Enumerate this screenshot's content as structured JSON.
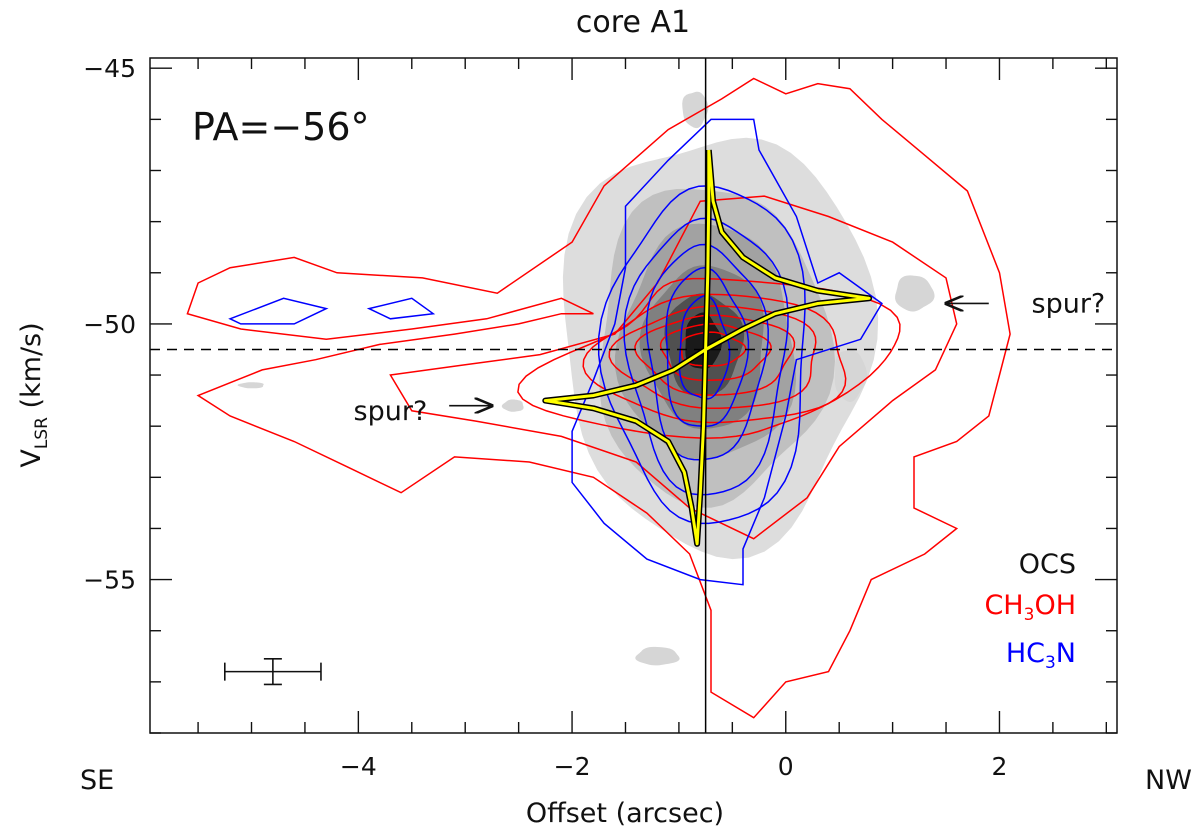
{
  "chart_data": {
    "type": "contour",
    "title": "core A1",
    "xlabel": "Offset (arcsec)",
    "ylabel": {
      "base": "V",
      "sub": "LSR",
      "unit": " (km/s)"
    },
    "xlim": [
      -5.95,
      3.1
    ],
    "ylim": [
      -58.0,
      -44.8
    ],
    "x_ticks": [
      -4,
      -2,
      0,
      2
    ],
    "x_tick_labels": [
      "−4",
      "−2",
      "0",
      "2"
    ],
    "y_ticks": [
      -55,
      -50,
      -45
    ],
    "y_tick_labels": [
      "−55",
      "−50",
      "−45"
    ],
    "direction_left": "SE",
    "direction_right": "NW",
    "pa_label": "PA=−56°",
    "center_offset": -0.75,
    "systemic_velocity": -50.5,
    "legend": {
      "position": "bottom-right",
      "items": [
        {
          "base": "OCS",
          "sub": "",
          "tail": "",
          "color": "#000000"
        },
        {
          "base": "CH",
          "sub": "3",
          "tail": "OH",
          "color": "#ff0000"
        },
        {
          "base": "HC",
          "sub": "3",
          "tail": "N",
          "color": "#0000ff"
        }
      ]
    },
    "annotations": [
      {
        "text": "spur?",
        "x": 2.3,
        "y": -49.6,
        "arrow_from": [
          1.9,
          -49.6
        ],
        "arrow_to": [
          1.5,
          -49.6
        ]
      },
      {
        "text": "spur?",
        "x": -3.7,
        "y": -51.7,
        "arrow_from": [
          -3.15,
          -51.6
        ],
        "arrow_to": [
          -2.75,
          -51.6
        ]
      }
    ],
    "error_bar": {
      "x": -4.8,
      "y": -56.8,
      "dx": 0.45,
      "dy": 0.25
    },
    "model_curve": {
      "color": "#ffff00",
      "points": [
        [
          -0.72,
          -46.6
        ],
        [
          -0.68,
          -47.6
        ],
        [
          -0.6,
          -48.2
        ],
        [
          -0.4,
          -48.7
        ],
        [
          -0.1,
          -49.1
        ],
        [
          0.3,
          -49.35
        ],
        [
          0.78,
          -49.5
        ],
        [
          0.3,
          -49.6
        ],
        [
          -0.1,
          -49.8
        ],
        [
          -0.4,
          -50.1
        ],
        [
          -0.75,
          -50.5
        ],
        [
          -1.05,
          -50.9
        ],
        [
          -1.4,
          -51.2
        ],
        [
          -1.8,
          -51.4
        ],
        [
          -2.25,
          -51.5
        ],
        [
          -1.8,
          -51.65
        ],
        [
          -1.4,
          -51.9
        ],
        [
          -1.1,
          -52.3
        ],
        [
          -0.95,
          -52.9
        ],
        [
          -0.88,
          -53.6
        ],
        [
          -0.83,
          -54.3
        ],
        [
          -0.8,
          -53.3
        ],
        [
          -0.77,
          -52.0
        ],
        [
          -0.75,
          -50.5
        ],
        [
          -0.73,
          -49.0
        ],
        [
          -0.72,
          -47.6
        ],
        [
          -0.72,
          -46.6
        ]
      ]
    },
    "ocs_contours": [
      {
        "level": 1,
        "color": "#dddddd",
        "center": [
          -0.65,
          -50.3
        ],
        "rx": 1.45,
        "ry": 4.05,
        "rot": 0
      },
      {
        "level": 2,
        "color": "#c0c0c0",
        "center": [
          -0.7,
          -50.4
        ],
        "rx": 1.08,
        "ry": 3.1,
        "rot": 0
      },
      {
        "level": 3,
        "color": "#a2a2a2",
        "center": [
          -0.73,
          -50.4
        ],
        "rx": 0.82,
        "ry": 2.3,
        "rot": 0
      },
      {
        "level": 4,
        "color": "#808080",
        "center": [
          -0.75,
          -50.45
        ],
        "rx": 0.57,
        "ry": 1.6,
        "rot": 0
      },
      {
        "level": 5,
        "color": "#505050",
        "center": [
          -0.77,
          -50.4
        ],
        "rx": 0.36,
        "ry": 1.0,
        "rot": 0
      },
      {
        "level": 6,
        "color": "#1a1a1a",
        "center": [
          -0.78,
          -50.35
        ],
        "rx": 0.17,
        "ry": 0.55,
        "rot": 0
      }
    ],
    "ocs_blobs": [
      {
        "center": [
          -0.85,
          -45.8
        ],
        "rx": 0.12,
        "ry": 0.35
      },
      {
        "center": [
          0.6,
          -51.0
        ],
        "rx": 0.15,
        "ry": 0.5
      },
      {
        "center": [
          1.2,
          -49.4
        ],
        "rx": 0.18,
        "ry": 0.35
      },
      {
        "center": [
          -1.2,
          -56.5
        ],
        "rx": 0.2,
        "ry": 0.18
      },
      {
        "center": [
          -2.55,
          -51.6
        ],
        "rx": 0.1,
        "ry": 0.12
      },
      {
        "center": [
          -5.0,
          -51.2
        ],
        "rx": 0.12,
        "ry": 0.06
      }
    ],
    "ch3oh_contours": [
      [
        [
          -5.5,
          -49.2
        ],
        [
          -5.2,
          -48.9
        ],
        [
          -4.6,
          -48.7
        ],
        [
          -4.2,
          -49.0
        ],
        [
          -3.4,
          -49.1
        ],
        [
          -2.7,
          -49.4
        ],
        [
          -2.0,
          -48.4
        ],
        [
          -1.7,
          -47.3
        ],
        [
          -1.1,
          -46.2
        ],
        [
          -0.6,
          -45.6
        ],
        [
          -0.3,
          -45.2
        ],
        [
          0.0,
          -45.5
        ],
        [
          0.3,
          -45.3
        ],
        [
          0.6,
          -45.4
        ],
        [
          0.9,
          -46.0
        ],
        [
          1.3,
          -46.7
        ],
        [
          1.7,
          -47.4
        ],
        [
          2.0,
          -49.0
        ],
        [
          2.1,
          -50.2
        ],
        [
          2.0,
          -51.0
        ],
        [
          1.9,
          -51.8
        ],
        [
          1.6,
          -52.3
        ],
        [
          1.2,
          -52.6
        ],
        [
          1.2,
          -53.6
        ],
        [
          1.6,
          -54.0
        ],
        [
          1.3,
          -54.5
        ],
        [
          0.8,
          -55.0
        ],
        [
          0.6,
          -56.0
        ],
        [
          0.4,
          -56.8
        ],
        [
          0.0,
          -57.0
        ],
        [
          -0.3,
          -57.7
        ],
        [
          -0.7,
          -57.2
        ],
        [
          -0.7,
          -55.6
        ],
        [
          -0.9,
          -54.5
        ],
        [
          -1.3,
          -53.7
        ],
        [
          -1.8,
          -53.0
        ],
        [
          -2.4,
          -52.7
        ],
        [
          -3.1,
          -52.6
        ],
        [
          -3.6,
          -53.3
        ],
        [
          -4.1,
          -52.8
        ],
        [
          -4.6,
          -52.3
        ],
        [
          -5.2,
          -51.8
        ],
        [
          -5.5,
          -51.4
        ],
        [
          -4.9,
          -50.9
        ],
        [
          -4.4,
          -50.7
        ],
        [
          -3.8,
          -50.4
        ],
        [
          -3.1,
          -50.2
        ],
        [
          -2.5,
          -50.0
        ],
        [
          -2.1,
          -49.8
        ],
        [
          -1.8,
          -49.8
        ],
        [
          -2.1,
          -49.5
        ],
        [
          -2.8,
          -49.9
        ],
        [
          -3.5,
          -50.1
        ],
        [
          -4.3,
          -50.3
        ],
        [
          -5.1,
          -50.1
        ],
        [
          -5.6,
          -49.8
        ],
        [
          -5.5,
          -49.2
        ]
      ],
      [
        [
          -3.7,
          -51.0
        ],
        [
          -3.0,
          -50.8
        ],
        [
          -2.3,
          -50.6
        ],
        [
          -1.6,
          -50.2
        ],
        [
          -1.2,
          -49.2
        ],
        [
          -0.8,
          -47.6
        ],
        [
          -0.2,
          -47.5
        ],
        [
          0.4,
          -47.9
        ],
        [
          1.0,
          -48.4
        ],
        [
          1.5,
          -49.1
        ],
        [
          1.6,
          -50.0
        ],
        [
          1.4,
          -50.9
        ],
        [
          1.0,
          -51.5
        ],
        [
          0.5,
          -52.4
        ],
        [
          0.2,
          -53.4
        ],
        [
          -0.3,
          -54.2
        ],
        [
          -0.9,
          -53.6
        ],
        [
          -1.4,
          -52.7
        ],
        [
          -2.1,
          -52.2
        ],
        [
          -2.9,
          -51.9
        ],
        [
          -3.5,
          -51.7
        ],
        [
          -3.7,
          -51.0
        ]
      ],
      {
        "center": [
          -0.6,
          -50.7
        ],
        "rx": 1.55,
        "ry": 1.55,
        "rot": 0,
        "taper": true,
        "sx": 2.1,
        "sy": 2.3
      },
      {
        "center": [
          -0.6,
          -50.7
        ],
        "rx": 1.2,
        "ry": 1.25,
        "rot": 0
      },
      {
        "center": [
          -0.62,
          -50.65
        ],
        "rx": 0.95,
        "ry": 1.0,
        "rot": 0
      },
      {
        "center": [
          -0.65,
          -50.6
        ],
        "rx": 0.72,
        "ry": 0.78,
        "rot": 0
      },
      {
        "center": [
          -0.67,
          -50.55
        ],
        "rx": 0.5,
        "ry": 0.55,
        "rot": 0
      },
      {
        "center": [
          -0.7,
          -50.5
        ],
        "rx": 0.3,
        "ry": 0.33,
        "rot": 0
      }
    ],
    "hc3n_contours": [
      [
        [
          -1.5,
          -47.7
        ],
        [
          -1.1,
          -46.8
        ],
        [
          -0.7,
          -46.0
        ],
        [
          -0.3,
          -46.0
        ],
        [
          -0.25,
          -46.6
        ],
        [
          0.1,
          -47.9
        ],
        [
          0.3,
          -49.2
        ],
        [
          0.5,
          -49.0
        ],
        [
          0.9,
          -49.6
        ],
        [
          0.7,
          -50.3
        ],
        [
          0.1,
          -50.7
        ],
        [
          0.0,
          -51.8
        ],
        [
          -0.2,
          -53.4
        ],
        [
          -0.4,
          -54.4
        ],
        [
          -0.4,
          -55.1
        ],
        [
          -0.8,
          -55.0
        ],
        [
          -1.3,
          -54.6
        ],
        [
          -1.7,
          -53.9
        ],
        [
          -2.0,
          -53.1
        ],
        [
          -2.0,
          -52.1
        ],
        [
          -1.8,
          -51.1
        ],
        [
          -1.6,
          -50.0
        ],
        [
          -1.5,
          -48.9
        ],
        [
          -1.5,
          -47.7
        ]
      ],
      {
        "center": [
          -0.72,
          -50.6
        ],
        "rx": 0.95,
        "ry": 3.3,
        "rot": 0
      },
      {
        "center": [
          -0.73,
          -50.6
        ],
        "rx": 0.74,
        "ry": 2.7,
        "rot": 0
      },
      {
        "center": [
          -0.75,
          -50.55
        ],
        "rx": 0.55,
        "ry": 2.1,
        "rot": 0
      },
      {
        "center": [
          -0.76,
          -50.5
        ],
        "rx": 0.38,
        "ry": 1.55,
        "rot": 0
      },
      {
        "center": [
          -0.77,
          -50.5
        ],
        "rx": 0.23,
        "ry": 1.0,
        "rot": 0
      },
      [
        [
          -5.2,
          -49.9
        ],
        [
          -4.7,
          -49.5
        ],
        [
          -4.3,
          -49.7
        ],
        [
          -4.6,
          -50.0
        ],
        [
          -5.1,
          -50.0
        ],
        [
          -5.2,
          -49.9
        ]
      ],
      [
        [
          -3.9,
          -49.7
        ],
        [
          -3.5,
          -49.5
        ],
        [
          -3.3,
          -49.8
        ],
        [
          -3.7,
          -49.9
        ],
        [
          -3.9,
          -49.7
        ]
      ]
    ]
  }
}
